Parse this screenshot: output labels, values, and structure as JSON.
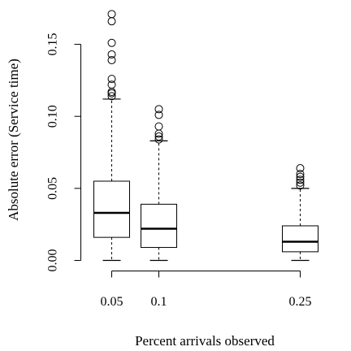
{
  "chart_data": {
    "type": "boxplot",
    "xlabel": "Percent arrivals observed",
    "ylabel": "Absolute error (Service time)",
    "x_positions": [
      0.05,
      0.1,
      0.25
    ],
    "x_tick_labels": [
      "0.05",
      "0.1",
      "0.25"
    ],
    "y_ticks": [
      0.0,
      0.05,
      0.1,
      0.15
    ],
    "y_tick_labels": [
      "0.00",
      "0.05",
      "0.10",
      "0.15"
    ],
    "ylim": [
      0.0,
      0.17
    ],
    "grid": false,
    "boxes": [
      {
        "x": 0.05,
        "whisker_low": 0.0,
        "q1": 0.016,
        "median": 0.033,
        "q3": 0.055,
        "whisker_high": 0.112,
        "outliers": [
          0.114,
          0.116,
          0.117,
          0.122,
          0.126,
          0.139,
          0.143,
          0.151,
          0.166,
          0.171
        ]
      },
      {
        "x": 0.1,
        "whisker_low": 0.0,
        "q1": 0.009,
        "median": 0.022,
        "q3": 0.039,
        "whisker_high": 0.083,
        "outliers": [
          0.084,
          0.086,
          0.088,
          0.093,
          0.101,
          0.105
        ]
      },
      {
        "x": 0.25,
        "whisker_low": 0.0,
        "q1": 0.006,
        "median": 0.013,
        "q3": 0.024,
        "whisker_high": 0.05,
        "outliers": [
          0.052,
          0.054,
          0.056,
          0.058,
          0.06,
          0.064
        ]
      }
    ]
  }
}
